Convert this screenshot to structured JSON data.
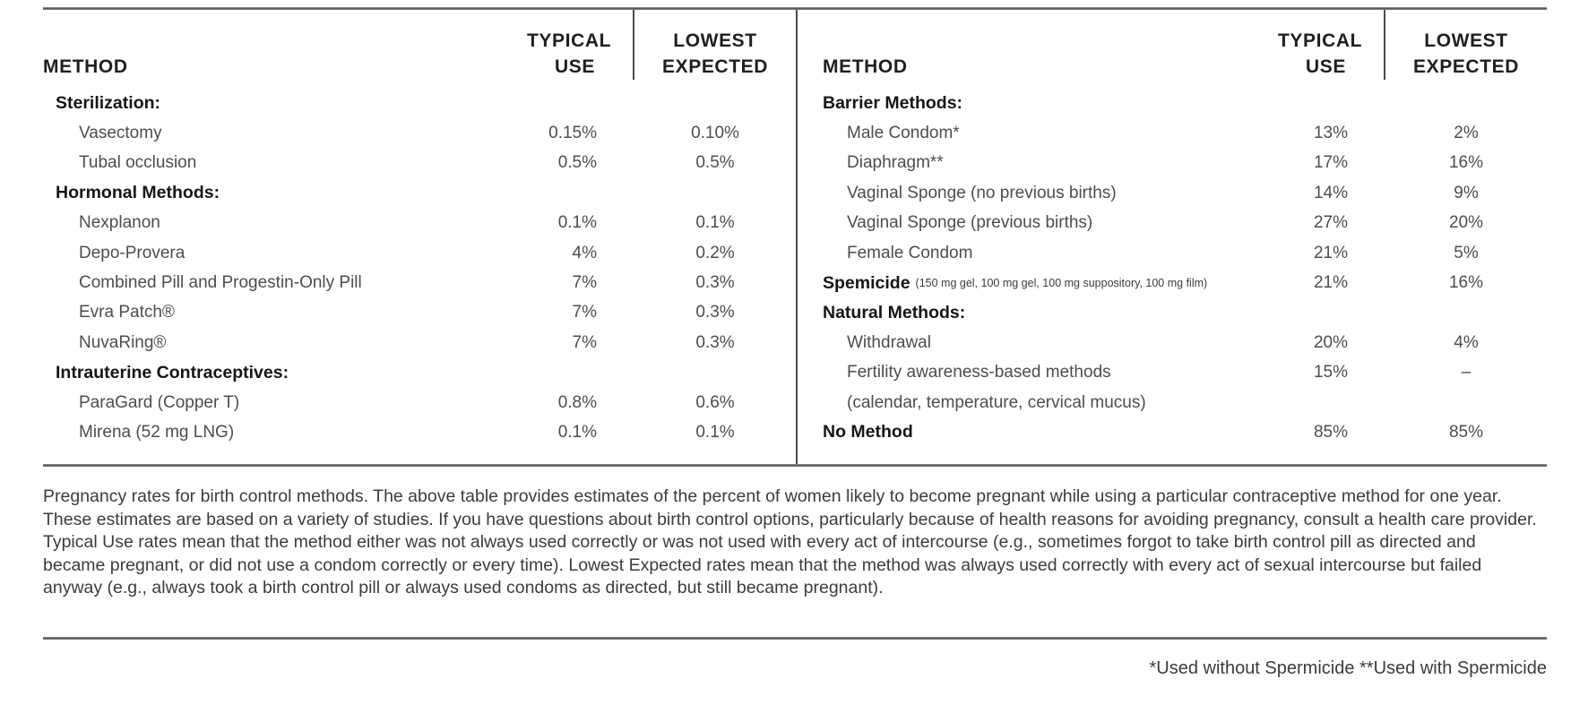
{
  "header": {
    "method": "METHOD",
    "typical": [
      "TYPICAL",
      "USE"
    ],
    "lowest": [
      "LOWEST",
      "EXPECTED"
    ]
  },
  "tables": [
    {
      "side": "left",
      "rows": [
        {
          "label": "Sterilization:",
          "bold": true,
          "indent": false,
          "typical": "",
          "lowest": ""
        },
        {
          "label": "Vasectomy",
          "bold": false,
          "indent": true,
          "typical": "0.15%",
          "lowest": "0.10%"
        },
        {
          "label": "Tubal occlusion",
          "bold": false,
          "indent": true,
          "typical": "0.5%",
          "lowest": "0.5%"
        },
        {
          "label": "Hormonal Methods:",
          "bold": true,
          "indent": false,
          "typical": "",
          "lowest": ""
        },
        {
          "label": "Nexplanon",
          "bold": false,
          "indent": true,
          "typical": "0.1%",
          "lowest": "0.1%"
        },
        {
          "label": "Depo-Provera",
          "bold": false,
          "indent": true,
          "typical": "4%",
          "lowest": "0.2%"
        },
        {
          "label": "Combined Pill and Progestin-Only Pill",
          "bold": false,
          "indent": true,
          "typical": "7%",
          "lowest": "0.3%"
        },
        {
          "label": "Evra Patch®",
          "bold": false,
          "indent": true,
          "typical": "7%",
          "lowest": "0.3%"
        },
        {
          "label": "NuvaRing®",
          "bold": false,
          "indent": true,
          "typical": "7%",
          "lowest": "0.3%"
        },
        {
          "label": "Intrauterine Contraceptives:",
          "bold": true,
          "indent": false,
          "typical": "",
          "lowest": ""
        },
        {
          "label": "ParaGard (Copper T)",
          "bold": false,
          "indent": true,
          "typical": "0.8%",
          "lowest": "0.6%"
        },
        {
          "label": "Mirena (52 mg LNG)",
          "bold": false,
          "indent": true,
          "typical": "0.1%",
          "lowest": "0.1%"
        }
      ]
    },
    {
      "side": "right",
      "rows": [
        {
          "label": "Barrier Methods:",
          "bold": true,
          "indent": false,
          "typical": "",
          "lowest": ""
        },
        {
          "label": "Male Condom*",
          "bold": false,
          "indent": true,
          "typical": "13%",
          "lowest": "2%"
        },
        {
          "label": "Diaphragm**",
          "bold": false,
          "indent": true,
          "typical": "17%",
          "lowest": "16%"
        },
        {
          "label": "Vaginal Sponge (no previous births)",
          "bold": false,
          "indent": true,
          "typical": "14%",
          "lowest": "9%"
        },
        {
          "label": "Vaginal Sponge (previous births)",
          "bold": false,
          "indent": true,
          "typical": "27%",
          "lowest": "20%"
        },
        {
          "label": "Female Condom",
          "bold": false,
          "indent": true,
          "typical": "21%",
          "lowest": "5%"
        },
        {
          "label": "Spemicide",
          "suffix": "(150 mg gel, 100 mg gel, 100 mg suppository,  100 mg film)",
          "bold": true,
          "indent": false,
          "typical": "21%",
          "lowest": "16%"
        },
        {
          "label": "Natural Methods:",
          "bold": true,
          "indent": false,
          "typical": "",
          "lowest": ""
        },
        {
          "label": "Withdrawal",
          "bold": false,
          "indent": true,
          "typical": "20%",
          "lowest": "4%"
        },
        {
          "label": "Fertility awareness-based methods",
          "bold": false,
          "indent": true,
          "typical": "15%",
          "lowest": "–"
        },
        {
          "label": "(calendar, temperature, cervical mucus)",
          "bold": false,
          "indent": true,
          "typical": "",
          "lowest": ""
        },
        {
          "label": "No Method",
          "bold": true,
          "indent": false,
          "typical": "85%",
          "lowest": "85%"
        }
      ]
    }
  ],
  "description": "Pregnancy rates for birth control methods. The above table provides estimates of the percent of women likely to become pregnant while using a particular contraceptive method for one year. These estimates are based on a variety of studies. If you have questions about birth control options, particularly because of health reasons for avoiding pregnancy, consult a health care provider. Typical Use rates mean that the method either was not always used correctly or was not used with every act of intercourse (e.g., sometimes forgot to take birth control pill as directed and became pregnant, or did not use a condom correctly or every time). Lowest Expected rates mean that the method was always used correctly with every act of sexual intercourse but failed anyway (e.g., always took a birth control pill or always used condoms as directed, but still became pregnant).",
  "footnote": "*Used without Spermicide **Used with Spermicide",
  "colors": {
    "heading_text": "#1f1f1f",
    "body_text": "#4d4d4d",
    "rule": "#4f4f4f",
    "background": "#ffffff"
  }
}
